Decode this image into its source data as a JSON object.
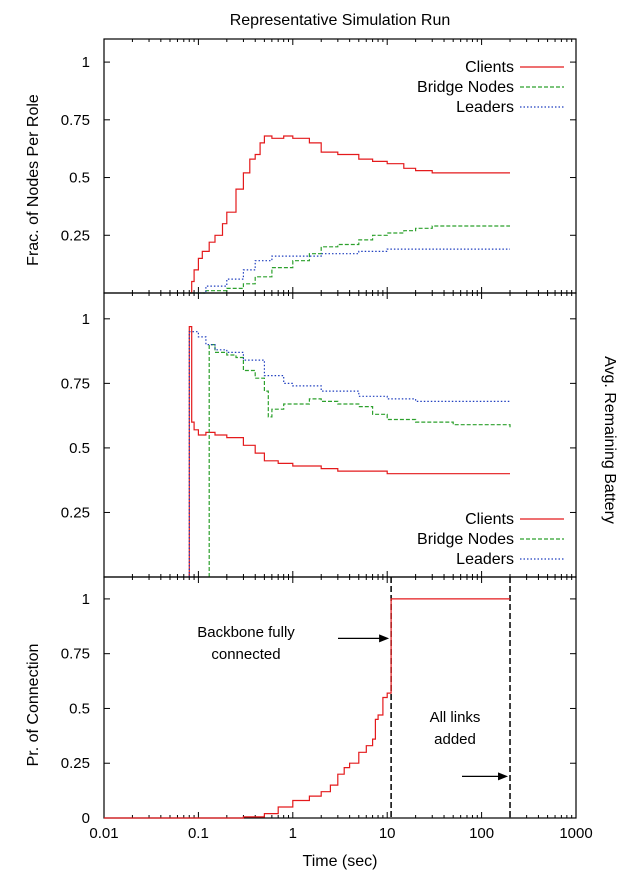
{
  "title": "Representative Simulation Run",
  "chart_data": [
    {
      "type": "line",
      "panel": "top",
      "ylabel": "Frac. of Nodes Per Role",
      "xscale": "log",
      "xlim": [
        0.01,
        1000
      ],
      "ylim": [
        0,
        1.1
      ],
      "yticks": [
        0.25,
        0.5,
        0.75,
        1
      ],
      "ytick_labels": [
        "0.25",
        "0.5",
        "0.75",
        "1"
      ],
      "legend": {
        "position": "top-right"
      },
      "series": [
        {
          "name": "Clients",
          "color": "#e41a1c",
          "style": "solid",
          "x": [
            0.08,
            0.085,
            0.09,
            0.1,
            0.11,
            0.13,
            0.15,
            0.18,
            0.2,
            0.25,
            0.3,
            0.35,
            0.4,
            0.45,
            0.5,
            0.6,
            0.8,
            1.0,
            1.5,
            2,
            3,
            5,
            7,
            10,
            15,
            20,
            30,
            50,
            100,
            200
          ],
          "y": [
            0.0,
            0.05,
            0.1,
            0.15,
            0.18,
            0.22,
            0.25,
            0.3,
            0.35,
            0.45,
            0.52,
            0.58,
            0.6,
            0.65,
            0.68,
            0.67,
            0.68,
            0.67,
            0.65,
            0.61,
            0.6,
            0.58,
            0.57,
            0.56,
            0.54,
            0.53,
            0.52,
            0.52,
            0.52,
            0.52
          ]
        },
        {
          "name": "Bridge Nodes",
          "color": "#2ca02c",
          "style": "dashed",
          "x": [
            0.08,
            0.12,
            0.2,
            0.3,
            0.4,
            0.6,
            1.0,
            1.5,
            2,
            3,
            5,
            7,
            10,
            15,
            20,
            30,
            50,
            100,
            200
          ],
          "y": [
            0.0,
            0.01,
            0.02,
            0.04,
            0.07,
            0.11,
            0.14,
            0.17,
            0.2,
            0.21,
            0.23,
            0.25,
            0.26,
            0.27,
            0.28,
            0.29,
            0.29,
            0.29,
            0.29
          ]
        },
        {
          "name": "Leaders",
          "color": "#1f3fbf",
          "style": "dotted",
          "x": [
            0.08,
            0.12,
            0.2,
            0.3,
            0.4,
            0.6,
            1.0,
            1.5,
            2,
            3,
            5,
            10,
            20,
            50,
            100,
            200
          ],
          "y": [
            0.0,
            0.03,
            0.06,
            0.1,
            0.14,
            0.16,
            0.16,
            0.16,
            0.17,
            0.17,
            0.18,
            0.19,
            0.19,
            0.19,
            0.19,
            0.19
          ]
        }
      ]
    },
    {
      "type": "line",
      "panel": "middle",
      "ylabel": "Avg. Remaining Battery",
      "xscale": "log",
      "xlim": [
        0.01,
        1000
      ],
      "ylim": [
        0,
        1.1
      ],
      "yticks": [
        0.25,
        0.5,
        0.75,
        1
      ],
      "ytick_labels": [
        "0.25",
        "0.5",
        "0.75",
        "1"
      ],
      "legend": {
        "position": "bottom-right"
      },
      "series": [
        {
          "name": "Clients",
          "color": "#e41a1c",
          "style": "solid",
          "x": [
            0.08,
            0.08,
            0.085,
            0.09,
            0.1,
            0.12,
            0.15,
            0.2,
            0.3,
            0.4,
            0.5,
            0.7,
            1.0,
            2,
            3,
            5,
            10,
            20,
            50,
            200
          ],
          "y": [
            0.0,
            0.97,
            0.6,
            0.57,
            0.55,
            0.56,
            0.55,
            0.54,
            0.51,
            0.48,
            0.45,
            0.44,
            0.43,
            0.42,
            0.41,
            0.41,
            0.4,
            0.4,
            0.4,
            0.4
          ]
        },
        {
          "name": "Bridge Nodes",
          "color": "#2ca02c",
          "style": "dashed",
          "x": [
            0.13,
            0.13,
            0.15,
            0.2,
            0.25,
            0.3,
            0.4,
            0.5,
            0.55,
            0.6,
            0.8,
            1.0,
            1.5,
            2,
            3,
            5,
            7,
            10,
            20,
            50,
            200
          ],
          "y": [
            0.0,
            0.9,
            0.87,
            0.86,
            0.85,
            0.8,
            0.77,
            0.72,
            0.62,
            0.65,
            0.67,
            0.67,
            0.69,
            0.68,
            0.67,
            0.66,
            0.63,
            0.61,
            0.6,
            0.59,
            0.58
          ]
        },
        {
          "name": "Leaders",
          "color": "#1f3fbf",
          "style": "dotted",
          "x": [
            0.08,
            0.08,
            0.1,
            0.12,
            0.15,
            0.2,
            0.3,
            0.5,
            0.8,
            1.0,
            2,
            3,
            5,
            10,
            20,
            50,
            200
          ],
          "y": [
            0.0,
            0.95,
            0.93,
            0.9,
            0.88,
            0.87,
            0.84,
            0.78,
            0.75,
            0.74,
            0.72,
            0.72,
            0.7,
            0.69,
            0.68,
            0.68,
            0.68
          ]
        }
      ]
    },
    {
      "type": "line",
      "panel": "bottom",
      "ylabel": "Pr. of Connection",
      "xlabel": "Time (sec)",
      "xscale": "log",
      "xlim": [
        0.01,
        1000
      ],
      "ylim": [
        0,
        1.1
      ],
      "xticks": [
        0.01,
        0.1,
        1,
        10,
        100,
        1000
      ],
      "xtick_labels": [
        "0.01",
        "0.1",
        "1",
        "10",
        "100",
        "1000"
      ],
      "yticks": [
        0,
        0.25,
        0.5,
        0.75,
        1
      ],
      "ytick_labels": [
        "0",
        "0.25",
        "0.5",
        "0.75",
        "1"
      ],
      "series": [
        {
          "color": "#e41a1c",
          "style": "solid",
          "x": [
            0.01,
            0.3,
            0.5,
            0.7,
            1.0,
            1.5,
            2,
            2.5,
            3,
            3.5,
            4,
            5,
            6,
            7,
            7.5,
            8,
            9,
            10,
            11,
            11,
            200
          ],
          "y": [
            0.0,
            0.005,
            0.02,
            0.05,
            0.08,
            0.1,
            0.12,
            0.15,
            0.2,
            0.23,
            0.25,
            0.3,
            0.33,
            0.36,
            0.45,
            0.47,
            0.55,
            0.57,
            0.6,
            1.0,
            1.0
          ]
        }
      ],
      "vlines": [
        11,
        200
      ],
      "annotations": [
        {
          "lines": [
            "Backbone fully",
            "connected"
          ],
          "arrow_to": {
            "x": 11,
            "y": 0.82
          }
        },
        {
          "lines": [
            "All links",
            "added"
          ],
          "arrow_to": {
            "x": 200,
            "y": 0.19
          }
        }
      ]
    }
  ]
}
